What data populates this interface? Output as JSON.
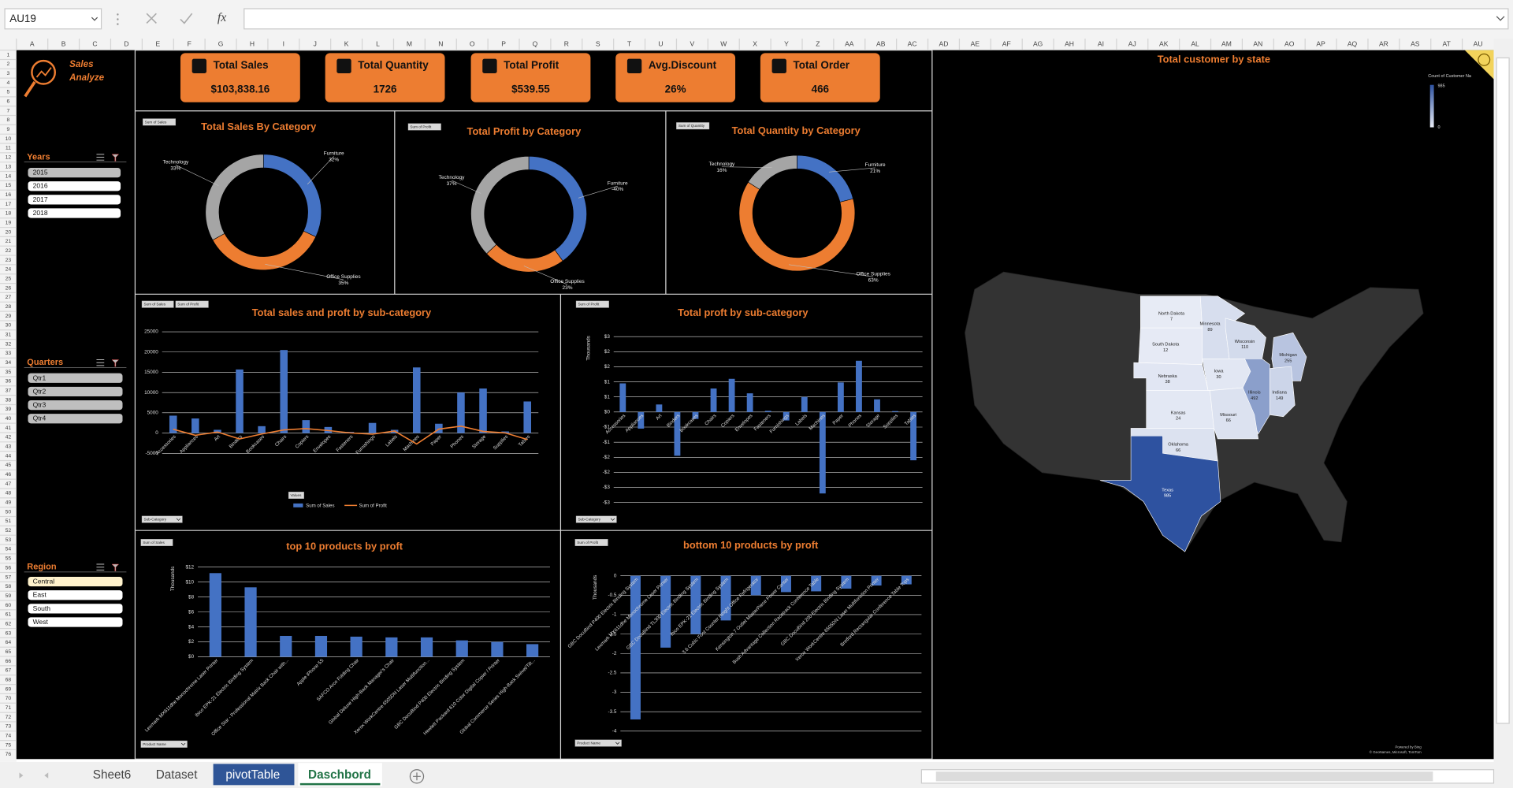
{
  "excel": {
    "name_box": "AU19",
    "fx": "fx",
    "columns": [
      "A",
      "B",
      "C",
      "D",
      "E",
      "F",
      "G",
      "H",
      "I",
      "J",
      "K",
      "L",
      "M",
      "N",
      "O",
      "P",
      "Q",
      "R",
      "S",
      "T",
      "U",
      "V",
      "W",
      "X",
      "Y",
      "Z",
      "AA",
      "AB",
      "AC",
      "AD",
      "AE",
      "AF",
      "AG",
      "AH",
      "AI",
      "AJ",
      "AK",
      "AL",
      "AM",
      "AN",
      "AO",
      "AP",
      "AQ",
      "AR",
      "AS",
      "AT",
      "AU"
    ],
    "rows": [
      1,
      2,
      3,
      4,
      5,
      6,
      7,
      8,
      9,
      10,
      11,
      12,
      13,
      14,
      15,
      16,
      17,
      18,
      19,
      20,
      21,
      22,
      23,
      24,
      25,
      26,
      27,
      28,
      29,
      30,
      31,
      32,
      33,
      34,
      35,
      36,
      37,
      38,
      39,
      40,
      41,
      42,
      43,
      44,
      45,
      46,
      47,
      48,
      49,
      50,
      51,
      52,
      53,
      54,
      55,
      56,
      57,
      58,
      59,
      60,
      61,
      62,
      63,
      64,
      65,
      66,
      67,
      68,
      69,
      70,
      71,
      72,
      73,
      74,
      75,
      76
    ],
    "sheets": [
      "Sheet6",
      "Dataset",
      "pivotTable",
      "Daschbord"
    ]
  },
  "dashboard": {
    "logo": [
      "Sales",
      "Analyze"
    ],
    "kpis": [
      {
        "label": "Total Sales",
        "value": "$103,838.16"
      },
      {
        "label": "Total Quantity",
        "value": "1726"
      },
      {
        "label": "Total Profit",
        "value": "$539.55"
      },
      {
        "label": "Avg.Discount",
        "value": "26%"
      },
      {
        "label": "Total Order",
        "value": "466"
      }
    ],
    "slicers": [
      {
        "title": "Years",
        "items": [
          "2015",
          "2016",
          "2017",
          "2018"
        ]
      },
      {
        "title": "Quarters",
        "items": [
          "Qtr1",
          "Qtr2",
          "Qtr3",
          "Qtr4"
        ]
      },
      {
        "title": "Region",
        "items": [
          "Central",
          "East",
          "South",
          "West"
        ]
      }
    ],
    "donuts": [
      {
        "type": "pie",
        "title": "Total Sales By Category",
        "field_button": "Sum of Sales",
        "categories": [
          "Furniture",
          "Office Supplies",
          "Technology"
        ],
        "values": [
          32,
          35,
          33
        ],
        "value_labels": [
          "32%",
          "35%",
          "33%"
        ],
        "colors": [
          "#4472c4",
          "#ed7d31",
          "#a5a5a5"
        ]
      },
      {
        "type": "pie",
        "title": "Total Profit by Category",
        "field_button": "Sum of Profit",
        "categories": [
          "Furniture",
          "Office Supplies",
          "Technology"
        ],
        "values": [
          -40,
          23,
          37
        ],
        "value_labels": [
          "-40%",
          "23%",
          "37%"
        ],
        "colors": [
          "#4472c4",
          "#ed7d31",
          "#a5a5a5"
        ]
      },
      {
        "type": "pie",
        "title": "Total Quantity by Category",
        "field_button": "Sum of Quantity",
        "categories": [
          "Furniture",
          "Office Supplies",
          "Technology"
        ],
        "values": [
          21,
          63,
          16
        ],
        "value_labels": [
          "21%",
          "63%",
          "16%"
        ],
        "colors": [
          "#4472c4",
          "#ed7d31",
          "#a5a5a5"
        ]
      }
    ],
    "combo": {
      "type": "bar",
      "title": "Total sales and proft by sub-category",
      "field_buttons": [
        "Sum of Sales",
        "Sum of Profit",
        "Values",
        "Sub-Category"
      ],
      "categories": [
        "Accessories",
        "Appliances",
        "Art",
        "Binders",
        "Bookcases",
        "Chairs",
        "Copiers",
        "Envelopes",
        "Fasteners",
        "Furnishings",
        "Labels",
        "Machines",
        "Paper",
        "Phones",
        "Storage",
        "Supplies",
        "Tables"
      ],
      "series": [
        {
          "name": "Sum of Sales",
          "color": "#4472c4",
          "values": [
            4300,
            3600,
            800,
            15700,
            1700,
            20500,
            3200,
            1500,
            300,
            2500,
            800,
            16200,
            2300,
            10000,
            11000,
            400,
            7800
          ]
        },
        {
          "name": "Sum of Profit",
          "color": "#ed7d31",
          "values": [
            950,
            -550,
            250,
            -1450,
            -230,
            780,
            1100,
            620,
            40,
            -280,
            500,
            -2700,
            980,
            1700,
            420,
            30,
            -1600
          ]
        }
      ],
      "ylim": [
        -5000,
        25000
      ],
      "yticks": [
        25000,
        20000,
        15000,
        10000,
        5000,
        0,
        -5000
      ],
      "grid": true
    },
    "profit_by_sub": {
      "type": "bar",
      "title": "Total proft by sub-category",
      "y_label": "Thousands",
      "field_buttons": [
        "Sum of Profit",
        "Sub-Category"
      ],
      "categories": [
        "Accessories",
        "Appliances",
        "Art",
        "Binders",
        "Bookcases",
        "Chairs",
        "Copiers",
        "Envelopes",
        "Fasteners",
        "Furnishings",
        "Labels",
        "Machines",
        "Paper",
        "Phones",
        "Storage",
        "Supplies",
        "Tables"
      ],
      "values": [
        0.95,
        -0.55,
        0.25,
        -1.45,
        -0.23,
        0.78,
        1.1,
        0.62,
        0.04,
        -0.28,
        0.5,
        -2.7,
        0.98,
        1.7,
        0.42,
        0.03,
        -1.6
      ],
      "color": "#4472c4",
      "ylim": [
        -3,
        2.5
      ],
      "yticks": [
        {
          "value": 2.5,
          "label": "$3"
        },
        {
          "value": 2,
          "label": "$2"
        },
        {
          "value": 1.5,
          "label": "$2"
        },
        {
          "value": 1,
          "label": "$1"
        },
        {
          "value": 0.5,
          "label": "$1"
        },
        {
          "value": 0,
          "label": "$0"
        },
        {
          "value": -0.5,
          "label": "-$1"
        },
        {
          "value": -1,
          "label": "-$1"
        },
        {
          "value": -1.5,
          "label": "-$2"
        },
        {
          "value": -2,
          "label": "-$2"
        },
        {
          "value": -2.5,
          "label": "-$3"
        },
        {
          "value": -3,
          "label": "-$3"
        }
      ],
      "grid": true
    },
    "top10": {
      "type": "bar",
      "title": "top 10 products by proft",
      "y_label": "Thousands",
      "field_buttons": [
        "Sum of Sales",
        "Product Name"
      ],
      "categories": [
        "Lexmark MX611dhe Monochrome Laser Printer",
        "Ibico EPK-21 Electric Binding System",
        "Office Star - Professional Matrix Back Chair with...",
        "Apple iPhone 5S",
        "SAFCO Arco Folding Chair",
        "Global Deluxe High-Back Manager's Chair",
        "Xerox WorkCentre 6505DN Laser Multifunction...",
        "GBC DocuBind P400 Electric Binding System",
        "Hewlett Packard 610 Color Digital Copier / Printer",
        "Global Commerce Series High-Back Swivel/Tilt..."
      ],
      "values": [
        11.2,
        9.3,
        2.8,
        2.8,
        2.7,
        2.6,
        2.6,
        2.2,
        2.0,
        1.7
      ],
      "color": "#4472c4",
      "ylim": [
        0,
        12
      ],
      "yticks": [
        {
          "value": 12,
          "label": "$12"
        },
        {
          "value": 10,
          "label": "$10"
        },
        {
          "value": 8,
          "label": "$8"
        },
        {
          "value": 6,
          "label": "$6"
        },
        {
          "value": 4,
          "label": "$4"
        },
        {
          "value": 2,
          "label": "$2"
        },
        {
          "value": 0,
          "label": "$0"
        }
      ],
      "grid": true
    },
    "bottom10": {
      "type": "bar",
      "title": "bottom 10 products by proft",
      "y_label": "Thousands",
      "field_buttons": [
        "Sum of Profit",
        "Product Name"
      ],
      "categories": [
        "GBC DocuBind P400 Electric Binding System",
        "Lexmark MX611dhe Monochrome Laser Printer",
        "GBC DocuBind TL300 Electric Binding System",
        "Ibico EPK-21 Electric Binding System",
        "3.6 Cubic Foot Counter Height Office Refrigerator",
        "Kensington 7 Outlet MasterPiece Power Center",
        "Bush Advantage Collection Racetrack Conference Table",
        "GBC DocuBind 200 Electric Binding System",
        "Xerox WorkCentre 6505DN Laser Multifunction Printer",
        "Bretford Rectangular Conference Table Tops"
      ],
      "values": [
        -3.7,
        -1.85,
        -1.5,
        -1.15,
        -0.5,
        -0.42,
        -0.4,
        -0.33,
        -0.25,
        -0.22
      ],
      "color": "#4472c4",
      "ylim": [
        -4,
        0
      ],
      "yticks": [
        0,
        -0.5,
        -1,
        -1.5,
        -2,
        -2.5,
        -3,
        -3.5,
        -4
      ],
      "grid": true
    },
    "map": {
      "type": "map",
      "title": "Total customer by state",
      "legend_title": "Count of Customer Na",
      "legend_max": 985,
      "legend_min": 0,
      "states": [
        "North Dakota",
        "Minnesota",
        "South Dakota",
        "Wisconsin",
        "Michigan",
        "Nebraska",
        "Iowa",
        "Illinois",
        "Indiana",
        "Kansas",
        "Missouri",
        "Oklahoma",
        "Texas"
      ],
      "values": [
        7,
        89,
        12,
        110,
        255,
        38,
        30,
        492,
        149,
        24,
        66,
        66,
        985
      ],
      "credits": [
        "Powered by Bing",
        "© GeoNames, Microsoft, TomTom"
      ]
    }
  }
}
